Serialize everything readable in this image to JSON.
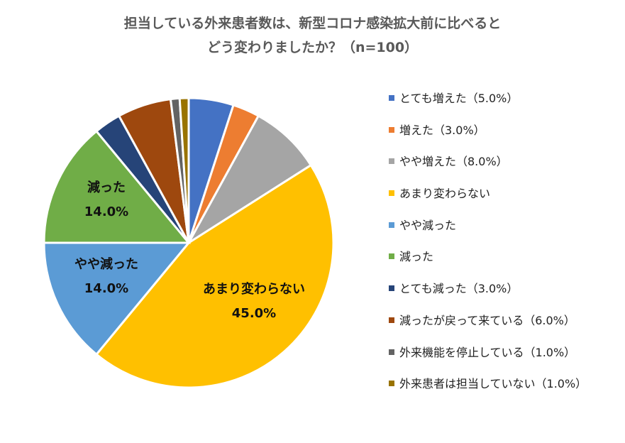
{
  "chart_data": {
    "type": "pie",
    "title_lines": [
      "担当している外来患者数は、新型コロナ感染拡大前に比べると",
      "どう変わりましたか？（n=100）"
    ],
    "slices": [
      {
        "name": "とても増えた",
        "value": 5.0,
        "color": "#4472C4",
        "legend": "とても増えた（5.0%）"
      },
      {
        "name": "増えた",
        "value": 3.0,
        "color": "#ED7D31",
        "legend": "増えた（3.0%）"
      },
      {
        "name": "やや増えた",
        "value": 8.0,
        "color": "#A5A5A5",
        "legend": "やや増えた（8.0%）"
      },
      {
        "name": "あまり変わらない",
        "value": 45.0,
        "color": "#FFC000",
        "legend": "あまり変わらない",
        "label_name": "あまり変わらない",
        "label_pct": "45.0%"
      },
      {
        "name": "やや減った",
        "value": 14.0,
        "color": "#5B9BD5",
        "legend": "やや減った",
        "label_name": "やや減った",
        "label_pct": "14.0%"
      },
      {
        "name": "減った",
        "value": 14.0,
        "color": "#70AD47",
        "legend": "減った",
        "label_name": "減った",
        "label_pct": "14.0%"
      },
      {
        "name": "とても減った",
        "value": 3.0,
        "color": "#264478",
        "legend": "とても減った（3.0%）"
      },
      {
        "name": "減ったが戻って来ている",
        "value": 6.0,
        "color": "#9E480E",
        "legend": "減ったが戻って来ている（6.0%）"
      },
      {
        "name": "外来機能を停止している",
        "value": 1.0,
        "color": "#636363",
        "legend": "外来機能を停止している（1.0%）"
      },
      {
        "name": "外来患者は担当していない",
        "value": 1.0,
        "color": "#997300",
        "legend": "外来患者は担当していない（1.0%）"
      }
    ]
  }
}
